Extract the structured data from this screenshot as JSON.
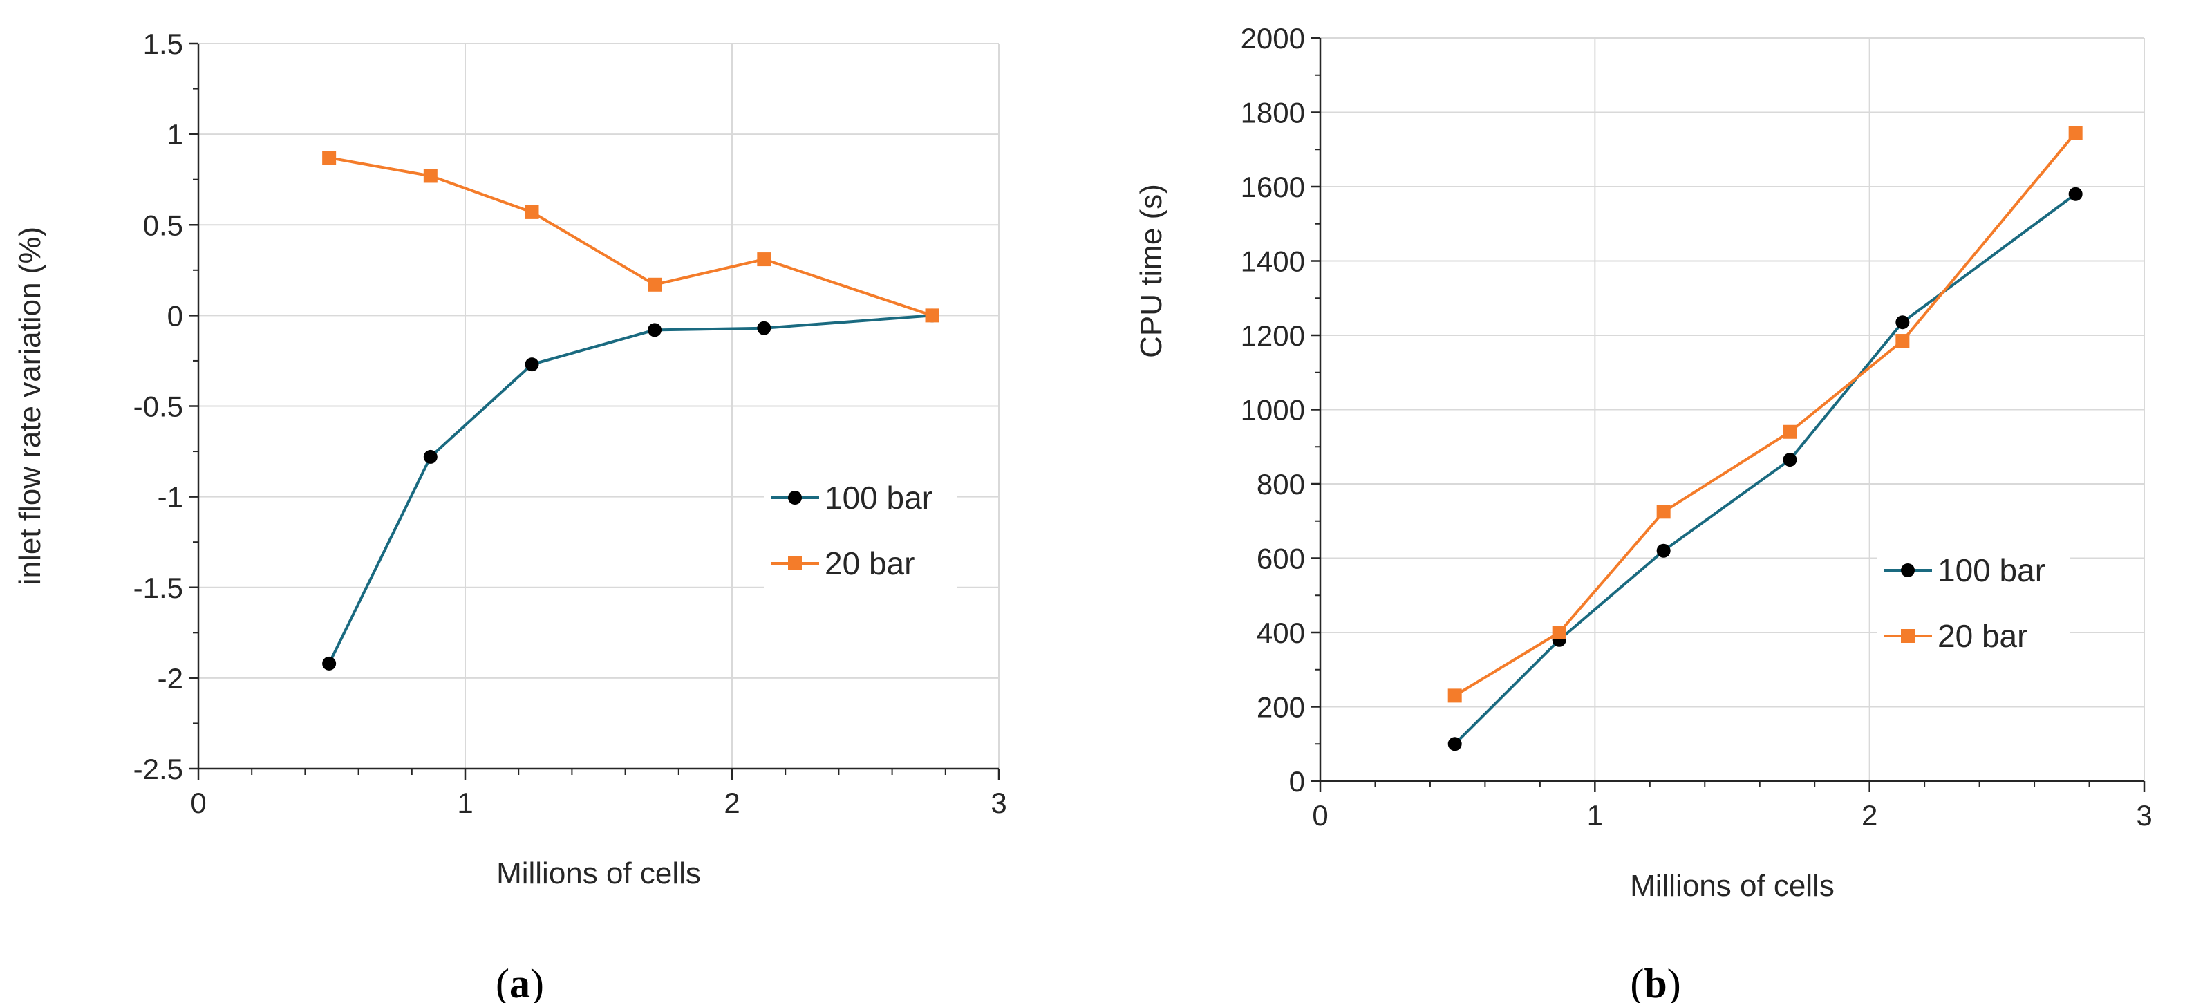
{
  "colors": {
    "series_100": "#1a6a80",
    "series_20": "#f47c2a",
    "grid": "#d9d9d9",
    "axis": "#262626"
  },
  "chart_data": [
    {
      "panel": "(a)",
      "panel_letter": "a",
      "type": "line",
      "xlabel": "Millions of cells",
      "ylabel": "inlet flow rate variation (%)",
      "xlim": [
        0,
        3
      ],
      "ylim": [
        -2.5,
        1.5
      ],
      "xticks": [
        0,
        1,
        2,
        3
      ],
      "xtick_labels": [
        "0",
        "1",
        "2",
        "3"
      ],
      "yticks": [
        -2.5,
        -2,
        -1.5,
        -1,
        -0.5,
        0,
        0.5,
        1,
        1.5
      ],
      "ytick_labels": [
        "-2.5",
        "-2",
        "-1.5",
        "-1",
        "-0.5",
        "0",
        "0.5",
        "1",
        "1.5"
      ],
      "grid": true,
      "legend_position": "center-right",
      "series": [
        {
          "name": "100 bar",
          "marker": "circle",
          "x": [
            0.49,
            0.87,
            1.25,
            1.71,
            2.12,
            2.75
          ],
          "values": [
            -1.92,
            -0.78,
            -0.27,
            -0.08,
            -0.07,
            0.0
          ]
        },
        {
          "name": "20 bar",
          "marker": "square",
          "x": [
            0.49,
            0.87,
            1.25,
            1.71,
            2.12,
            2.75
          ],
          "values": [
            0.87,
            0.77,
            0.57,
            0.17,
            0.31,
            0.0
          ]
        }
      ]
    },
    {
      "panel": "(b)",
      "panel_letter": "b",
      "type": "line",
      "xlabel": "Millions of cells",
      "ylabel": "CPU time (s)",
      "xlim": [
        0,
        3
      ],
      "ylim": [
        0,
        2000
      ],
      "xticks": [
        0,
        1,
        2,
        3
      ],
      "xtick_labels": [
        "0",
        "1",
        "2",
        "3"
      ],
      "yticks": [
        0,
        200,
        400,
        600,
        800,
        1000,
        1200,
        1400,
        1600,
        1800,
        2000
      ],
      "ytick_labels": [
        "0",
        "200",
        "400",
        "600",
        "800",
        "1000",
        "1200",
        "1400",
        "1600",
        "1800",
        "2000"
      ],
      "grid": true,
      "legend_position": "center-right",
      "series": [
        {
          "name": "100 bar",
          "marker": "circle",
          "x": [
            0.49,
            0.87,
            1.25,
            1.71,
            2.12,
            2.75
          ],
          "values": [
            100,
            380,
            620,
            865,
            1235,
            1580
          ]
        },
        {
          "name": "20 bar",
          "marker": "square",
          "x": [
            0.49,
            0.87,
            1.25,
            1.71,
            2.12,
            2.75
          ],
          "values": [
            230,
            400,
            725,
            940,
            1185,
            1745
          ]
        }
      ]
    }
  ]
}
